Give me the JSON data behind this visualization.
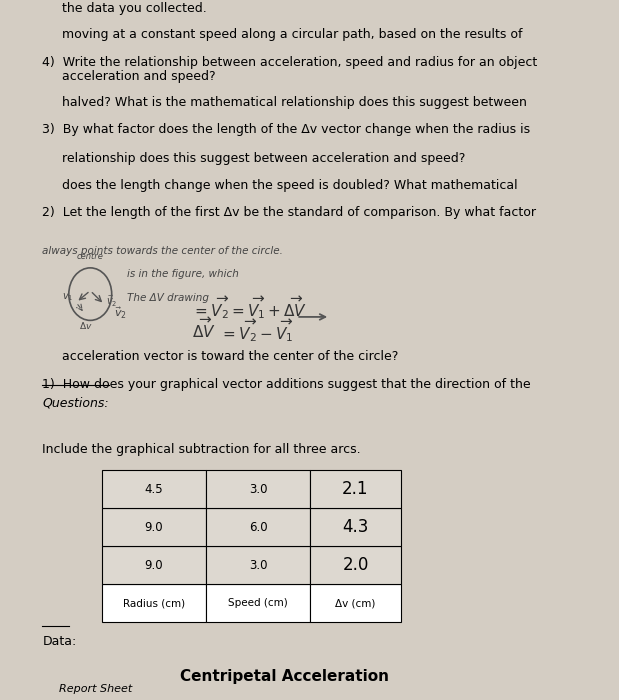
{
  "bg_color": "#d4cdc3",
  "report_sheet_text": "Report Sheet",
  "title": "Centripetal Acceleration",
  "data_label": "Data:",
  "table_headers": [
    "Radius (cm)",
    "Speed (cm)",
    "Δv (cm)"
  ],
  "table_rows": [
    [
      "9.0",
      "3.0"
    ],
    [
      "9.0",
      "6.0"
    ],
    [
      "4.5",
      "3.0"
    ]
  ],
  "handwritten_dv": [
    "2.0",
    "4.3",
    "2.1"
  ],
  "include_text": "Include the graphical subtraction for all three arcs.",
  "questions_label": "Questions:",
  "q1_line1": "1)  How does your graphical vector additions suggest that the direction of the",
  "q1_line2": "     acceleration vector is toward the center of the circle?",
  "q2_line1": "2)  Let the length of the first Δv be the standard of comparison. By what factor",
  "q2_line2": "     does the length change when the speed is doubled? What mathematical",
  "q2_line3": "     relationship does this suggest between acceleration and speed?",
  "q3_line1": "3)  By what factor does the length of the Δv vector change when the radius is",
  "q3_line2": "     halved? What is the mathematical relationship does this suggest between",
  "q3_line3": "     acceleration and speed?",
  "q4_line1": "4)  Write the relationship between acceleration, speed and radius for an object",
  "q4_line2": "     moving at a constant speed along a circular path, based on the results of",
  "q4_line3": "     the data you collected.",
  "handwritten_answer1": "The ΔV drawing",
  "handwritten_answer2": "is in the figure, which",
  "handwritten_answer3": "always points towards the center of the circle.",
  "font_size_title": 11,
  "font_size_body": 9,
  "font_size_small": 8,
  "font_size_report": 8,
  "font_size_handwritten": 10
}
